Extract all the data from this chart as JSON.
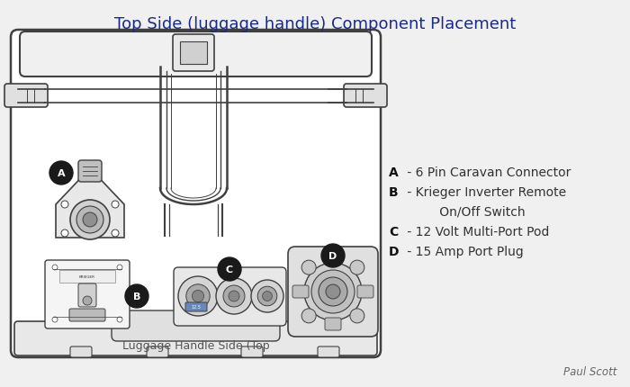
{
  "title": "Top Side (luggage handle) Component Placement",
  "title_color": "#1a2a8a",
  "bg_color": "#f0f0f0",
  "line_color": "#404040",
  "legend_lines": [
    [
      "A",
      " - 6 Pin Caravan Connector"
    ],
    [
      "B",
      " - Krieger Inverter Remote"
    ],
    [
      "",
      "      On/Off Switch"
    ],
    [
      "C",
      " - 12 Volt Multi-Port Pod"
    ],
    [
      "D",
      " - 15 Amp Port Plug"
    ]
  ],
  "bottom_label": "Luggage Handle Side (Top",
  "credit": "Paul Scott"
}
